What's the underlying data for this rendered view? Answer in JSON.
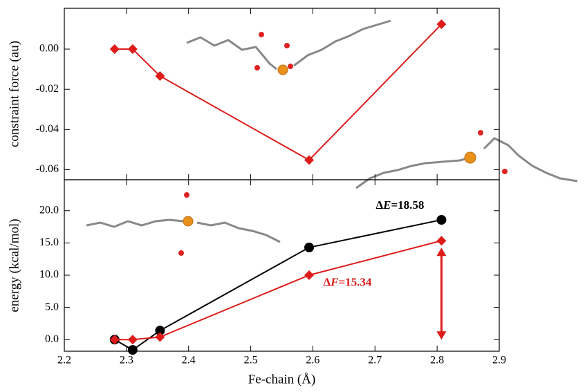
{
  "chart_data": [
    {
      "type": "line",
      "ylabel": "constraint force (au)",
      "x": [
        2.281,
        2.31,
        2.354,
        2.594,
        2.807
      ],
      "series": [
        {
          "name": "constraint force",
          "color": "#dd1c1a",
          "values": [
            0.0,
            0.0,
            -0.0134,
            -0.0552,
            0.0124
          ]
        }
      ],
      "ylim": [
        -0.065,
        0.0203
      ],
      "yticks": [
        -0.06,
        -0.04,
        -0.02,
        {
          "value": 0,
          "label": "0.00"
        }
      ]
    },
    {
      "type": "line",
      "ylabel": "energy (kcal/mol)",
      "xlabel": "Fe-chain (Å)",
      "x": [
        2.281,
        2.31,
        2.354,
        2.594,
        2.807
      ],
      "series": [
        {
          "name": "ΔE",
          "color": "#000000",
          "marker": "circle",
          "values": [
            0.0,
            -1.6,
            1.4,
            14.3,
            18.58
          ]
        },
        {
          "name": "ΔF",
          "color": "#dd1c1a",
          "marker": "diamond",
          "values": [
            0.0,
            0.0,
            0.4,
            10.0,
            15.34
          ]
        }
      ],
      "xlim": [
        2.2,
        2.9
      ],
      "xticks": [
        2.2,
        2.3,
        2.4,
        2.5,
        2.6,
        2.7,
        2.8,
        2.9
      ],
      "ylim": [
        -1.8,
        24.8
      ],
      "yticks": [
        {
          "value": 0,
          "label": "0.0"
        },
        {
          "value": 5,
          "label": "5.0"
        },
        {
          "value": 10,
          "label": "10.0"
        },
        {
          "value": 15,
          "label": "15.0"
        },
        {
          "value": 20,
          "label": "20.0"
        }
      ],
      "annotations": [
        {
          "parts": [
            "Δ",
            "E",
            "=18.58"
          ],
          "color": "#000000"
        },
        {
          "parts": [
            "Δ",
            "F",
            "=15.34"
          ],
          "color": "#dd1c1a"
        }
      ]
    }
  ]
}
